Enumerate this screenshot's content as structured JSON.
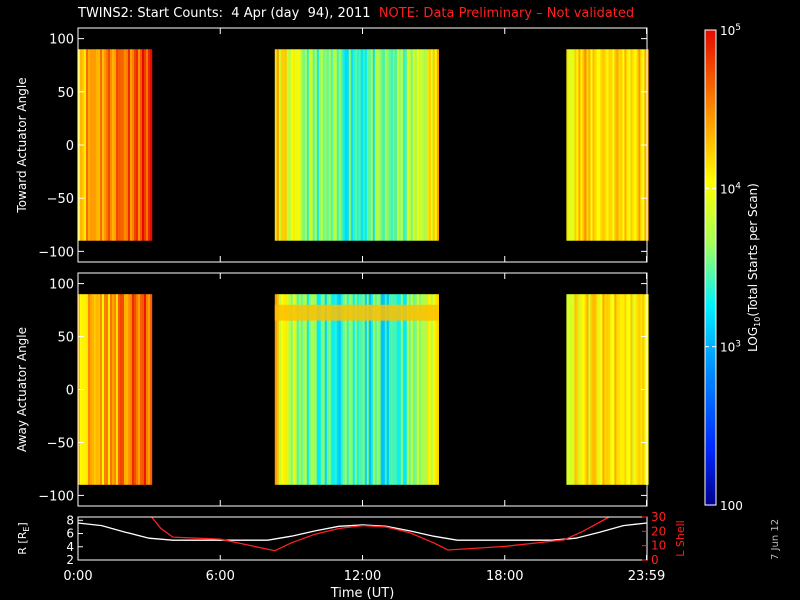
{
  "title": "TWINS2: Start Counts:  4 Apr (day  94), 2011",
  "note": "NOTE: Data Preliminary – Not validated",
  "side_date": "7 Jun 12",
  "chart_data": [
    {
      "type": "heatmap",
      "ylabel": "Toward Actuator Angle",
      "ylim": [
        -110,
        110
      ],
      "yticks": [
        "100",
        "50",
        "0",
        "−50",
        "−100"
      ],
      "ytick_values": [
        100,
        50,
        0,
        -50,
        -100
      ],
      "angle_range": [
        -90,
        90
      ],
      "data_intervals_hours": [
        [
          0,
          3.1
        ],
        [
          8.3,
          15.2
        ],
        [
          20.6,
          24
        ]
      ],
      "segment_levels": [
        4.35,
        3.45,
        4.2
      ]
    },
    {
      "type": "heatmap",
      "ylabel": "Away Actuator Angle",
      "ylim": [
        -110,
        110
      ],
      "yticks": [
        "100",
        "50",
        "0",
        "−50",
        "−100"
      ],
      "ytick_values": [
        100,
        50,
        0,
        -50,
        -100
      ],
      "angle_range": [
        -90,
        90
      ],
      "data_intervals_hours": [
        [
          0,
          3.1
        ],
        [
          8.3,
          15.2
        ],
        [
          20.6,
          24
        ]
      ],
      "segment_levels": [
        4.2,
        3.35,
        4.1
      ],
      "high_band_angle": [
        65,
        80
      ]
    },
    {
      "type": "line",
      "ylabel": "R [R",
      "ylabel_sub": "E",
      "ylabel_end": "]",
      "ylim": [
        2,
        8.5
      ],
      "yticks": [
        "8",
        "6",
        "4",
        "2"
      ],
      "ytick_values": [
        8,
        6,
        4,
        2
      ],
      "y2label": "L Shell",
      "y2lim": [
        0,
        30
      ],
      "y2ticks": [
        "30",
        "20",
        "10",
        "0"
      ],
      "y2tick_values": [
        30,
        20,
        10,
        0
      ],
      "y2color": "#ff2020",
      "series": [
        {
          "axis": "left",
          "color": "#ffffff",
          "x": [
            0,
            1,
            2,
            3,
            4,
            6,
            8,
            9,
            10,
            11,
            12,
            13,
            14,
            15,
            16,
            18,
            20,
            21,
            22,
            23,
            24
          ],
          "y": [
            7.6,
            7.2,
            6.2,
            5.3,
            5.0,
            5.0,
            5.0,
            5.6,
            6.4,
            7.1,
            7.3,
            7.1,
            6.4,
            5.6,
            5.0,
            5.0,
            5.0,
            5.3,
            6.2,
            7.2,
            7.6
          ]
        },
        {
          "axis": "right",
          "color": "#ff2020",
          "x": [
            3.1,
            3.5,
            4,
            6,
            8.3,
            9,
            10,
            11,
            12,
            13,
            14,
            15,
            15.6,
            18,
            20.5,
            21.3,
            22.4
          ],
          "y": [
            30,
            22,
            16,
            14.5,
            6.5,
            12,
            18,
            22,
            24,
            23,
            19,
            12,
            7,
            9.5,
            14,
            20,
            30
          ]
        }
      ]
    }
  ],
  "xaxis": {
    "label": "Time (UT)",
    "ticks": [
      "0:00",
      "6:00",
      "12:00",
      "18:00",
      "23:59"
    ],
    "tick_values": [
      0,
      6,
      12,
      18,
      23.98
    ],
    "range": [
      0,
      24
    ]
  },
  "colorbar": {
    "label_pre": "LOG",
    "label_sub": "10",
    "label_post": "(Total Starts per Scan)",
    "ticks": [
      "100",
      "10",
      "10",
      "10"
    ],
    "tick_sups": [
      "",
      "3",
      "4",
      "5"
    ],
    "tick_values": [
      2,
      3,
      4,
      5
    ],
    "range": [
      2,
      5
    ]
  }
}
